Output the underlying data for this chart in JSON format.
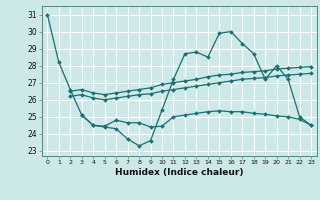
{
  "title": "",
  "xlabel": "Humidex (Indice chaleur)",
  "bg_color": "#cce8e8",
  "line_color": "#1a7070",
  "grid_color": "#ffffff",
  "xlim": [
    -0.5,
    23.5
  ],
  "ylim": [
    22.7,
    31.5
  ],
  "yticks": [
    23,
    24,
    25,
    26,
    27,
    28,
    29,
    30,
    31
  ],
  "xticks": [
    0,
    1,
    2,
    3,
    4,
    5,
    6,
    7,
    8,
    9,
    10,
    11,
    12,
    13,
    14,
    15,
    16,
    17,
    18,
    19,
    20,
    21,
    22,
    23
  ],
  "line1_x": [
    0,
    1,
    2,
    3,
    4,
    5,
    6,
    7,
    8,
    9,
    10,
    11,
    12,
    13,
    14,
    15,
    16,
    17,
    18,
    19,
    20,
    21,
    22,
    23
  ],
  "line1_y": [
    31.0,
    28.2,
    26.6,
    25.1,
    24.5,
    24.4,
    24.3,
    23.7,
    23.3,
    23.6,
    25.4,
    27.2,
    28.7,
    28.8,
    28.5,
    29.9,
    30.0,
    29.3,
    28.7,
    27.2,
    28.0,
    27.2,
    25.0,
    24.5
  ],
  "line2_x": [
    2,
    3,
    4,
    5,
    6,
    7,
    8,
    9,
    10,
    11,
    12,
    13,
    14,
    15,
    16,
    17,
    18,
    19,
    20,
    21,
    22,
    23
  ],
  "line2_y": [
    26.5,
    26.6,
    26.4,
    26.3,
    26.4,
    26.5,
    26.6,
    26.7,
    26.9,
    27.0,
    27.1,
    27.2,
    27.35,
    27.45,
    27.5,
    27.6,
    27.65,
    27.7,
    27.8,
    27.85,
    27.9,
    27.95
  ],
  "line3_x": [
    2,
    3,
    4,
    5,
    6,
    7,
    8,
    9,
    10,
    11,
    12,
    13,
    14,
    15,
    16,
    17,
    18,
    19,
    20,
    21,
    22,
    23
  ],
  "line3_y": [
    26.2,
    26.3,
    26.1,
    26.0,
    26.1,
    26.2,
    26.3,
    26.35,
    26.5,
    26.6,
    26.7,
    26.8,
    26.9,
    27.0,
    27.1,
    27.2,
    27.25,
    27.3,
    27.4,
    27.45,
    27.5,
    27.55
  ],
  "line4_x": [
    3,
    4,
    5,
    6,
    7,
    8,
    9,
    10,
    11,
    12,
    13,
    14,
    15,
    16,
    17,
    18,
    19,
    20,
    21,
    22,
    23
  ],
  "line4_y": [
    25.1,
    24.5,
    24.45,
    24.8,
    24.65,
    24.65,
    24.4,
    24.45,
    25.0,
    25.1,
    25.2,
    25.3,
    25.35,
    25.3,
    25.3,
    25.2,
    25.15,
    25.05,
    25.0,
    24.85,
    24.5
  ]
}
